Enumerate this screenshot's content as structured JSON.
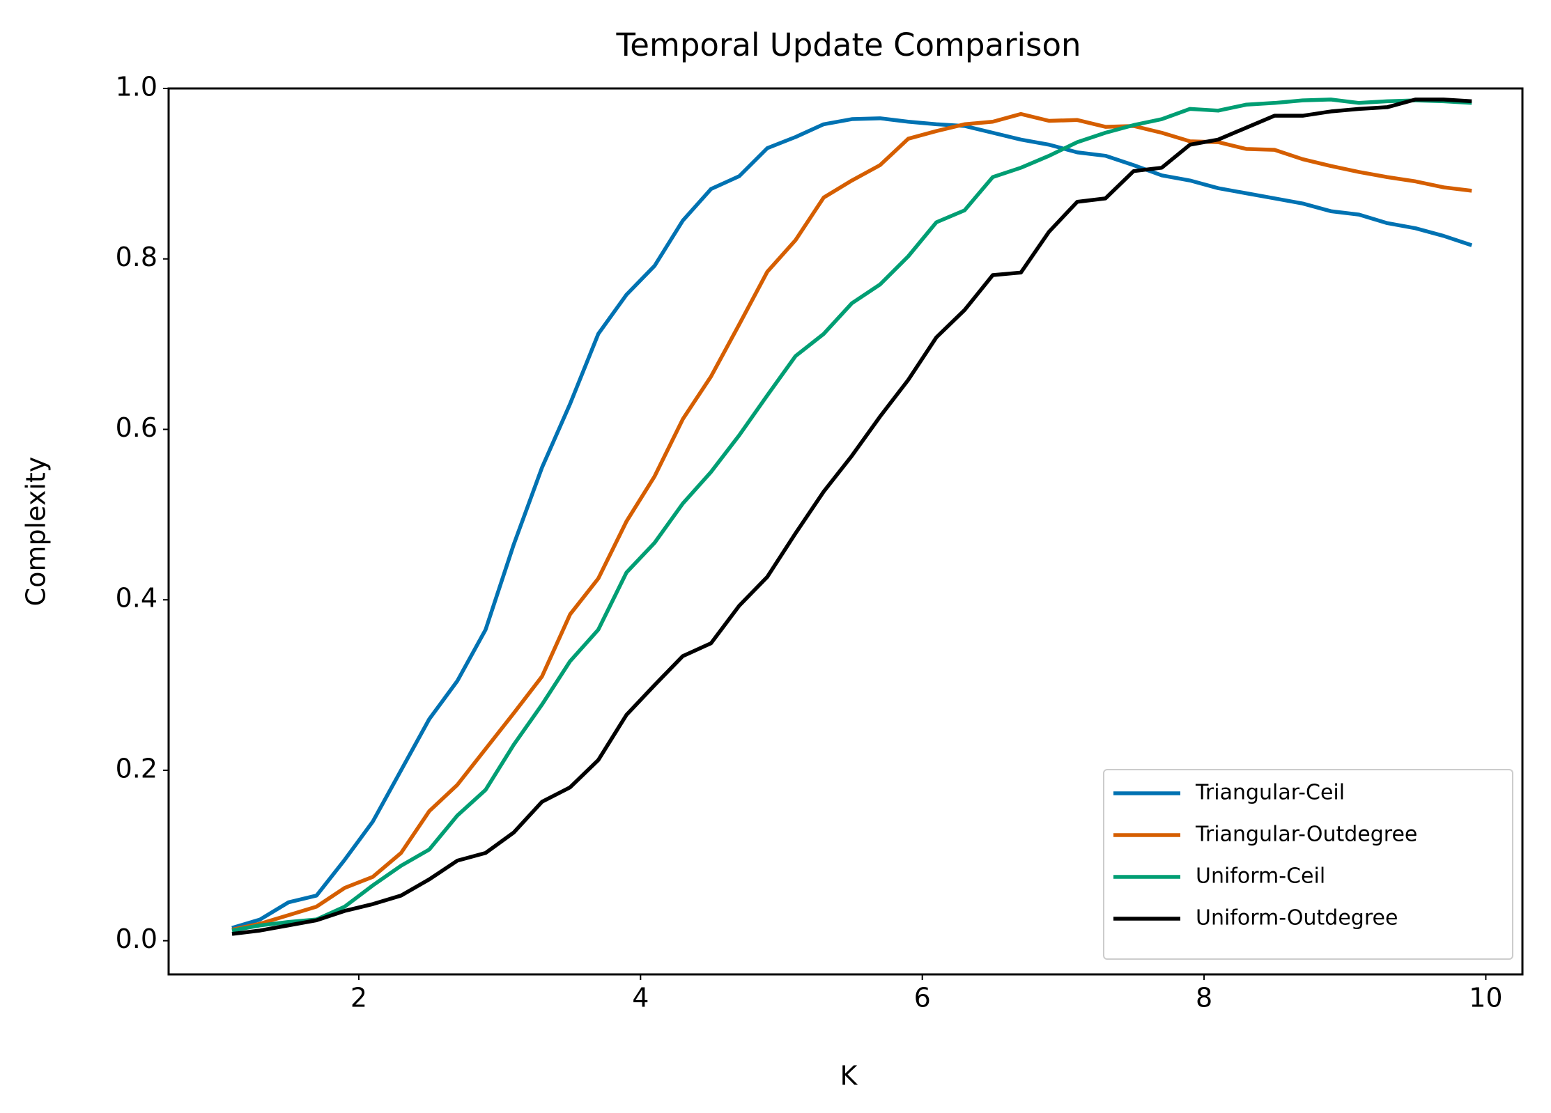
{
  "chart_data": {
    "type": "line",
    "title": "Temporal Update Comparison",
    "xlabel": "K",
    "ylabel": "Complexity",
    "x": [
      1.1,
      1.3,
      1.5,
      1.7,
      1.9,
      2.1,
      2.3,
      2.5,
      2.7,
      2.9,
      3.1,
      3.3,
      3.5,
      3.7,
      3.9,
      4.1,
      4.3,
      4.5,
      4.7,
      4.9,
      5.1,
      5.3,
      5.5,
      5.7,
      5.9,
      6.1,
      6.3,
      6.5,
      6.7,
      6.9,
      7.1,
      7.3,
      7.5,
      7.7,
      7.9,
      8.1,
      8.3,
      8.5,
      8.7,
      8.9,
      9.1,
      9.3,
      9.5,
      9.7,
      9.9
    ],
    "series": [
      {
        "name": "Triangular-Ceil",
        "color": "#0072b2",
        "values": [
          0.015,
          0.025,
          0.045,
          0.053,
          0.095,
          0.14,
          0.2,
          0.26,
          0.305,
          0.365,
          0.465,
          0.555,
          0.63,
          0.712,
          0.758,
          0.792,
          0.845,
          0.882,
          0.897,
          0.93,
          0.943,
          0.958,
          0.964,
          0.965,
          0.961,
          0.958,
          0.956,
          0.948,
          0.94,
          0.934,
          0.925,
          0.921,
          0.91,
          0.898,
          0.892,
          0.883,
          0.877,
          0.871,
          0.865,
          0.856,
          0.852,
          0.842,
          0.836,
          0.827,
          0.816
        ]
      },
      {
        "name": "Triangular-Outdegree",
        "color": "#d55e00",
        "values": [
          0.013,
          0.02,
          0.03,
          0.04,
          0.062,
          0.075,
          0.103,
          0.152,
          0.183,
          0.225,
          0.267,
          0.31,
          0.383,
          0.425,
          0.492,
          0.545,
          0.612,
          0.662,
          0.723,
          0.785,
          0.822,
          0.872,
          0.892,
          0.91,
          0.941,
          0.95,
          0.958,
          0.961,
          0.97,
          0.962,
          0.963,
          0.955,
          0.956,
          0.948,
          0.938,
          0.937,
          0.929,
          0.928,
          0.917,
          0.909,
          0.902,
          0.896,
          0.891,
          0.884,
          0.88
        ]
      },
      {
        "name": "Uniform-Ceil",
        "color": "#009e73",
        "values": [
          0.012,
          0.018,
          0.022,
          0.025,
          0.04,
          0.065,
          0.088,
          0.107,
          0.147,
          0.177,
          0.23,
          0.277,
          0.328,
          0.365,
          0.432,
          0.467,
          0.513,
          0.55,
          0.593,
          0.64,
          0.686,
          0.712,
          0.748,
          0.77,
          0.803,
          0.843,
          0.857,
          0.896,
          0.907,
          0.921,
          0.937,
          0.948,
          0.957,
          0.964,
          0.976,
          0.974,
          0.981,
          0.983,
          0.986,
          0.987,
          0.983,
          0.985,
          0.986,
          0.985,
          0.983
        ]
      },
      {
        "name": "Uniform-Outdegree",
        "color": "#000000",
        "values": [
          0.008,
          0.012,
          0.018,
          0.024,
          0.035,
          0.043,
          0.053,
          0.072,
          0.094,
          0.103,
          0.127,
          0.163,
          0.18,
          0.212,
          0.265,
          0.3,
          0.334,
          0.349,
          0.393,
          0.427,
          0.478,
          0.527,
          0.569,
          0.615,
          0.658,
          0.708,
          0.74,
          0.781,
          0.784,
          0.832,
          0.867,
          0.871,
          0.903,
          0.907,
          0.934,
          0.94,
          0.954,
          0.968,
          0.968,
          0.973,
          0.976,
          0.978,
          0.987,
          0.987,
          0.985
        ]
      }
    ],
    "xlim": [
      0.65,
      10.26
    ],
    "ylim": [
      -0.0395,
      1.0
    ],
    "xticks": [
      2,
      4,
      6,
      8,
      10
    ],
    "yticks": [
      {
        "value": 0,
        "label": "0.0"
      },
      {
        "value": 0.2,
        "label": "0.2"
      },
      {
        "value": 0.4,
        "label": "0.4"
      },
      {
        "value": 0.6,
        "label": "0.6"
      },
      {
        "value": 0.8,
        "label": "0.8"
      },
      {
        "value": 1,
        "label": "1.0"
      }
    ],
    "legend": "lower right",
    "grid": false
  }
}
